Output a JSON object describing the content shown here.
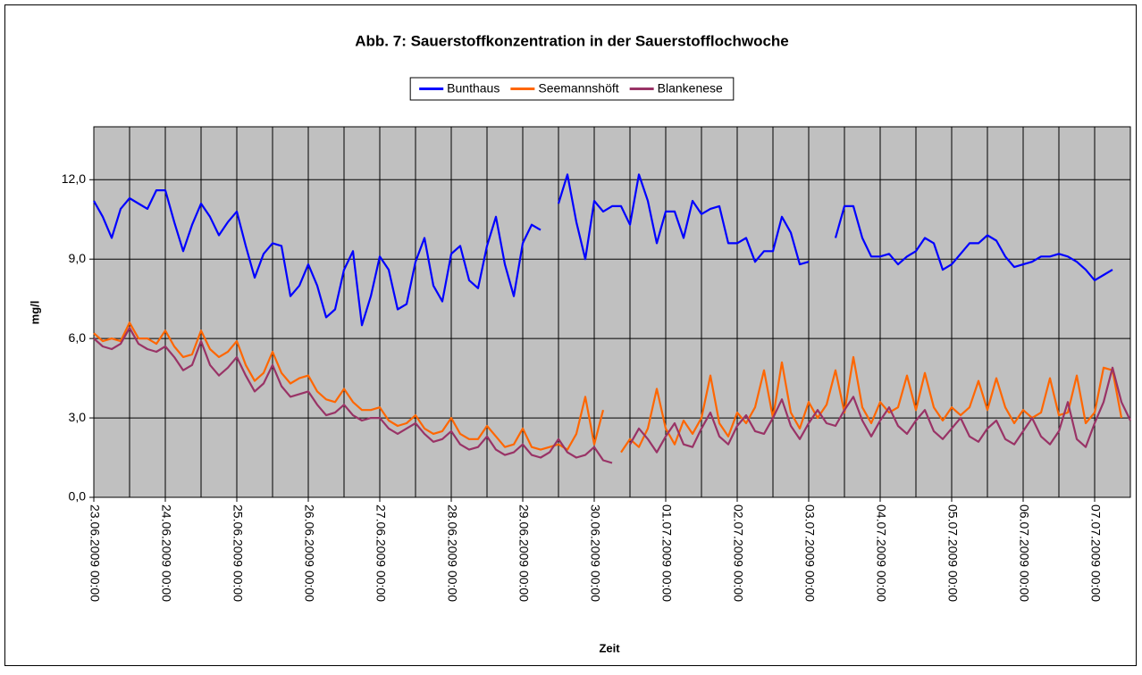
{
  "chart_data": {
    "type": "line",
    "title": "Abb. 7: Sauerstoffkonzentration in der Sauerstofflochwoche",
    "x_label": "Zeit",
    "y_label": "mg/l",
    "legend": "top",
    "grid": true,
    "xgrid_step_hours": 12,
    "plot_background": "#c0c0c0",
    "xlim": [
      "23.06.2009 00:00",
      "07.07.2009 12:00"
    ],
    "ylim": [
      0,
      14
    ],
    "yticks": [
      {
        "value": 0,
        "label": "0,0"
      },
      {
        "value": 3,
        "label": "3,0"
      },
      {
        "value": 6,
        "label": "6,0"
      },
      {
        "value": 9,
        "label": "9,0"
      },
      {
        "value": 12,
        "label": "12,0"
      }
    ],
    "xticks": [
      "23.06.2009 00:00",
      "24.06.2009 00:00",
      "25.06.2009 00:00",
      "26.06.2009 00:00",
      "27.06.2009 00:00",
      "28.06.2009 00:00",
      "29.06.2009 00:00",
      "30.06.2009 00:00",
      "01.07.2009 00:00",
      "02.07.2009 00:00",
      "03.07.2009 00:00",
      "04.07.2009 00:00",
      "05.07.2009 00:00",
      "06.07.2009 00:00",
      "07.07.2009 00:00"
    ],
    "x": [
      "23.06.2009 00:00",
      "23.06.2009 03:00",
      "23.06.2009 06:00",
      "23.06.2009 09:00",
      "23.06.2009 12:00",
      "23.06.2009 15:00",
      "23.06.2009 18:00",
      "23.06.2009 21:00",
      "24.06.2009 00:00",
      "24.06.2009 03:00",
      "24.06.2009 06:00",
      "24.06.2009 09:00",
      "24.06.2009 12:00",
      "24.06.2009 15:00",
      "24.06.2009 18:00",
      "24.06.2009 21:00",
      "25.06.2009 00:00",
      "25.06.2009 03:00",
      "25.06.2009 06:00",
      "25.06.2009 09:00",
      "25.06.2009 12:00",
      "25.06.2009 15:00",
      "25.06.2009 18:00",
      "25.06.2009 21:00",
      "26.06.2009 00:00",
      "26.06.2009 03:00",
      "26.06.2009 06:00",
      "26.06.2009 09:00",
      "26.06.2009 12:00",
      "26.06.2009 15:00",
      "26.06.2009 18:00",
      "26.06.2009 21:00",
      "27.06.2009 00:00",
      "27.06.2009 03:00",
      "27.06.2009 06:00",
      "27.06.2009 09:00",
      "27.06.2009 12:00",
      "27.06.2009 15:00",
      "27.06.2009 18:00",
      "27.06.2009 21:00",
      "28.06.2009 00:00",
      "28.06.2009 03:00",
      "28.06.2009 06:00",
      "28.06.2009 09:00",
      "28.06.2009 12:00",
      "28.06.2009 15:00",
      "28.06.2009 18:00",
      "28.06.2009 21:00",
      "29.06.2009 00:00",
      "29.06.2009 03:00",
      "29.06.2009 06:00",
      "29.06.2009 09:00",
      "29.06.2009 12:00",
      "29.06.2009 15:00",
      "29.06.2009 18:00",
      "29.06.2009 21:00",
      "30.06.2009 00:00",
      "30.06.2009 03:00",
      "30.06.2009 06:00",
      "30.06.2009 09:00",
      "30.06.2009 12:00",
      "30.06.2009 15:00",
      "30.06.2009 18:00",
      "30.06.2009 21:00",
      "01.07.2009 00:00",
      "01.07.2009 03:00",
      "01.07.2009 06:00",
      "01.07.2009 09:00",
      "01.07.2009 12:00",
      "01.07.2009 15:00",
      "01.07.2009 18:00",
      "01.07.2009 21:00",
      "02.07.2009 00:00",
      "02.07.2009 03:00",
      "02.07.2009 06:00",
      "02.07.2009 09:00",
      "02.07.2009 12:00",
      "02.07.2009 15:00",
      "02.07.2009 18:00",
      "02.07.2009 21:00",
      "03.07.2009 00:00",
      "03.07.2009 03:00",
      "03.07.2009 06:00",
      "03.07.2009 09:00",
      "03.07.2009 12:00",
      "03.07.2009 15:00",
      "03.07.2009 18:00",
      "03.07.2009 21:00",
      "04.07.2009 00:00",
      "04.07.2009 03:00",
      "04.07.2009 06:00",
      "04.07.2009 09:00",
      "04.07.2009 12:00",
      "04.07.2009 15:00",
      "04.07.2009 18:00",
      "04.07.2009 21:00",
      "05.07.2009 00:00",
      "05.07.2009 03:00",
      "05.07.2009 06:00",
      "05.07.2009 09:00",
      "05.07.2009 12:00",
      "05.07.2009 15:00",
      "05.07.2009 18:00",
      "05.07.2009 21:00",
      "06.07.2009 00:00",
      "06.07.2009 03:00",
      "06.07.2009 06:00",
      "06.07.2009 09:00",
      "06.07.2009 12:00",
      "06.07.2009 15:00",
      "06.07.2009 18:00",
      "06.07.2009 21:00",
      "07.07.2009 00:00",
      "07.07.2009 03:00",
      "07.07.2009 06:00",
      "07.07.2009 09:00",
      "07.07.2009 12:00"
    ],
    "series": [
      {
        "name": "Bunthaus",
        "color": "#0000ff",
        "values": [
          11.2,
          10.6,
          9.8,
          10.9,
          11.3,
          11.1,
          10.9,
          11.6,
          11.6,
          10.4,
          9.3,
          10.3,
          11.1,
          10.6,
          9.9,
          10.4,
          10.8,
          9.5,
          8.3,
          9.2,
          9.6,
          9.5,
          7.6,
          8.0,
          8.8,
          8.0,
          6.8,
          7.1,
          8.6,
          9.3,
          6.5,
          7.6,
          9.1,
          8.6,
          7.1,
          7.3,
          8.9,
          9.8,
          8.0,
          7.4,
          9.2,
          9.5,
          8.2,
          7.9,
          9.5,
          10.6,
          8.8,
          7.6,
          9.6,
          10.3,
          10.1,
          null,
          11.1,
          12.2,
          10.4,
          9.0,
          11.2,
          10.8,
          11.0,
          11.0,
          10.3,
          12.2,
          11.2,
          9.6,
          10.8,
          10.8,
          9.8,
          11.2,
          10.7,
          10.9,
          11.0,
          9.6,
          9.6,
          9.8,
          8.9,
          9.3,
          9.3,
          10.6,
          10.0,
          8.8,
          8.9,
          null,
          null,
          9.8,
          11.0,
          11.0,
          9.8,
          9.1,
          9.1,
          9.2,
          8.8,
          9.1,
          9.3,
          9.8,
          9.6,
          8.6,
          8.8,
          9.2,
          9.6,
          9.6,
          9.9,
          9.7,
          9.1,
          8.7,
          8.8,
          8.9,
          9.1,
          9.1,
          9.2,
          9.1,
          8.9,
          8.6,
          8.2,
          8.4,
          8.6,
          null,
          null
        ]
      },
      {
        "name": "Seemannshöft",
        "color": "#ff6600",
        "values": [
          6.2,
          5.9,
          6.0,
          5.9,
          6.6,
          6.0,
          6.0,
          5.8,
          6.3,
          5.7,
          5.3,
          5.4,
          6.3,
          5.6,
          5.3,
          5.5,
          5.9,
          5.0,
          4.4,
          4.7,
          5.5,
          4.7,
          4.3,
          4.5,
          4.6,
          4.0,
          3.7,
          3.6,
          4.1,
          3.6,
          3.3,
          3.3,
          3.4,
          2.9,
          2.7,
          2.8,
          3.1,
          2.6,
          2.4,
          2.5,
          3.0,
          2.4,
          2.2,
          2.2,
          2.7,
          2.3,
          1.9,
          2.0,
          2.6,
          1.9,
          1.8,
          1.9,
          2.0,
          1.8,
          2.4,
          3.8,
          2.0,
          3.3,
          null,
          1.7,
          2.2,
          1.9,
          2.6,
          4.1,
          2.6,
          2.0,
          2.9,
          2.4,
          3.0,
          4.6,
          2.8,
          2.3,
          3.2,
          2.8,
          3.4,
          4.8,
          3.0,
          5.1,
          3.2,
          2.6,
          3.6,
          3.0,
          3.5,
          4.8,
          3.2,
          5.3,
          3.4,
          2.8,
          3.6,
          3.2,
          3.4,
          4.6,
          3.3,
          4.7,
          3.4,
          2.9,
          3.4,
          3.1,
          3.4,
          4.4,
          3.3,
          4.5,
          3.4,
          2.8,
          3.3,
          3.0,
          3.2,
          4.5,
          3.1,
          3.2,
          4.6,
          2.8,
          3.2,
          4.9,
          4.8,
          3.0,
          null
        ]
      },
      {
        "name": "Blankenese",
        "color": "#993366",
        "values": [
          6.0,
          5.7,
          5.6,
          5.8,
          6.4,
          5.8,
          5.6,
          5.5,
          5.7,
          5.3,
          4.8,
          5.0,
          5.9,
          5.0,
          4.6,
          4.9,
          5.3,
          4.6,
          4.0,
          4.3,
          5.0,
          4.2,
          3.8,
          3.9,
          4.0,
          3.5,
          3.1,
          3.2,
          3.5,
          3.1,
          2.9,
          3.0,
          3.0,
          2.6,
          2.4,
          2.6,
          2.8,
          2.4,
          2.1,
          2.2,
          2.5,
          2.0,
          1.8,
          1.9,
          2.3,
          1.8,
          1.6,
          1.7,
          2.0,
          1.6,
          1.5,
          1.7,
          2.2,
          1.7,
          1.5,
          1.6,
          1.9,
          1.4,
          1.3,
          null,
          2.0,
          2.6,
          2.2,
          1.7,
          2.3,
          2.8,
          2.0,
          1.9,
          2.6,
          3.2,
          2.3,
          2.0,
          2.7,
          3.1,
          2.5,
          2.4,
          3.0,
          3.7,
          2.7,
          2.2,
          2.8,
          3.3,
          2.8,
          2.7,
          3.3,
          3.8,
          2.9,
          2.3,
          2.9,
          3.4,
          2.7,
          2.4,
          2.9,
          3.3,
          2.5,
          2.2,
          2.6,
          3.0,
          2.3,
          2.1,
          2.6,
          2.9,
          2.2,
          2.0,
          2.5,
          3.0,
          2.3,
          2.0,
          2.5,
          3.6,
          2.2,
          1.9,
          2.8,
          3.6,
          4.9,
          3.6,
          2.9
        ]
      }
    ]
  }
}
